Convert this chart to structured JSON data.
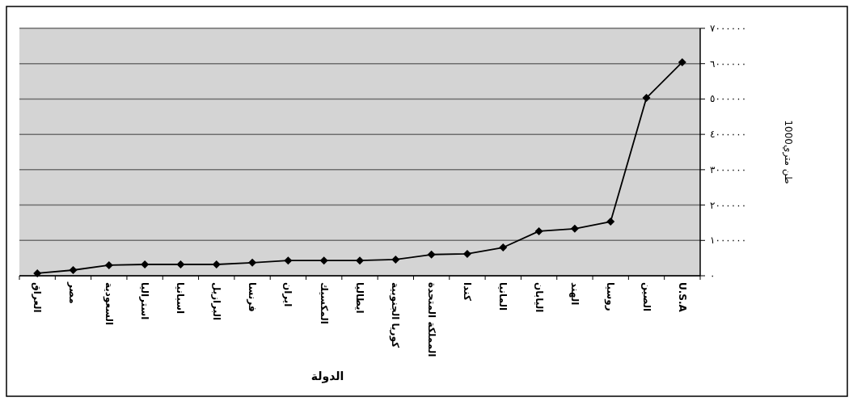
{
  "chart_data": {
    "type": "line",
    "xlabel": "الدولة",
    "ylabel": "1000طن متري",
    "categories": [
      "العراق",
      "مصر",
      "السعودية",
      "استراليا",
      "اسبانيا",
      "البرازيل",
      "فرنسا",
      "ايران",
      "المكسيك",
      "ايطاليا",
      "كوريا الجنوبية",
      "المملكة المتحدة",
      "كندا",
      "المانيا",
      "اليابان",
      "الهند",
      "روسيا",
      "الصين",
      "U.S.A"
    ],
    "series": [
      {
        "color": "#000000",
        "values": [
          70000,
          160000,
          300000,
          320000,
          320000,
          320000,
          370000,
          430000,
          430000,
          430000,
          460000,
          600000,
          620000,
          800000,
          1260000,
          1330000,
          1530000,
          5030000,
          6040000
        ]
      }
    ],
    "ylim": [
      0,
      7000000
    ],
    "yticks": [
      {
        "value": 0,
        "label": "٠"
      },
      {
        "value": 1000000,
        "label": "١٠٠٠٠٠٠"
      },
      {
        "value": 2000000,
        "label": "٢٠٠٠٠٠٠"
      },
      {
        "value": 3000000,
        "label": "٣٠٠٠٠٠٠"
      },
      {
        "value": 4000000,
        "label": "٤٠٠٠٠٠٠"
      },
      {
        "value": 5000000,
        "label": "٥٠٠٠٠٠٠"
      },
      {
        "value": 6000000,
        "label": "٦٠٠٠٠٠٠"
      },
      {
        "value": 7000000,
        "label": "٧٠٠٠٠٠٠"
      }
    ],
    "grid": "y",
    "marker": "diamond",
    "line_style": "solid"
  }
}
